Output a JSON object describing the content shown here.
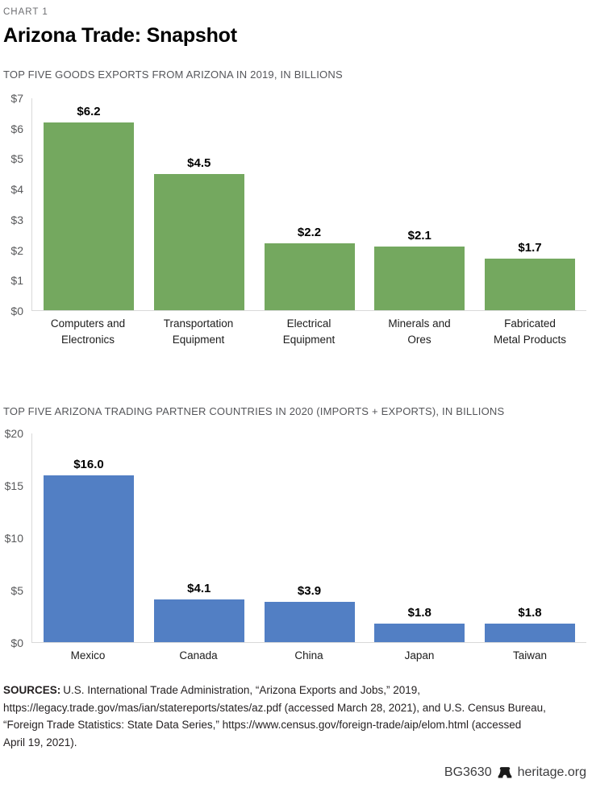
{
  "page": {
    "kicker": "CHART 1",
    "title": "Arizona Trade: Snapshot"
  },
  "chart_data": [
    {
      "type": "bar",
      "title": "TOP FIVE GOODS EXPORTS FROM ARIZONA IN 2019, IN BILLIONS",
      "categories": [
        "Computers and\nElectronics",
        "Transportation\nEquipment",
        "Electrical\nEquipment",
        "Minerals and\nOres",
        "Fabricated\nMetal Products"
      ],
      "values": [
        6.2,
        4.5,
        2.2,
        2.1,
        1.7
      ],
      "value_labels": [
        "$6.2",
        "$4.5",
        "$2.2",
        "$2.1",
        "$1.7"
      ],
      "ylabel_prefix": "$",
      "ylim": [
        0,
        7
      ],
      "ytick_step": 1,
      "bar_color": "#74A85F",
      "grid": false,
      "legend": "none"
    },
    {
      "type": "bar",
      "title": "TOP FIVE ARIZONA TRADING PARTNER COUNTRIES IN 2020 (IMPORTS + EXPORTS), IN BILLIONS",
      "categories": [
        "Mexico",
        "Canada",
        "China",
        "Japan",
        "Taiwan"
      ],
      "values": [
        16.0,
        4.1,
        3.9,
        1.8,
        1.8
      ],
      "value_labels": [
        "$16.0",
        "$4.1",
        "$3.9",
        "$1.8",
        "$1.8"
      ],
      "ylabel_prefix": "$",
      "ylim": [
        0,
        20
      ],
      "ytick_step": 5,
      "bar_color": "#527FC4",
      "grid": false,
      "legend": "none"
    }
  ],
  "sources": {
    "label": "SOURCES:",
    "lines": [
      "U.S. International Trade Administration, “Arizona Exports and Jobs,” 2019,",
      "https://legacy.trade.gov/mas/ian/statereports/states/az.pdf (accessed March 28, 2021), and U.S. Census Bureau,",
      "“Foreign Trade Statistics: State Data Series,” https://www.census.gov/foreign-trade/aip/elom.html (accessed",
      "April 19, 2021)."
    ]
  },
  "footer": {
    "doc_id": "BG3630",
    "site": "heritage.org",
    "bell_icon": "liberty-bell-icon"
  },
  "colors": {
    "export_bar_green": "#74A85F",
    "partner_bar_blue": "#527FC4",
    "axis_text_gray": "#58595B",
    "heading_gray": "#6D6E71",
    "axis_line_gray": "#D9D9D9"
  }
}
